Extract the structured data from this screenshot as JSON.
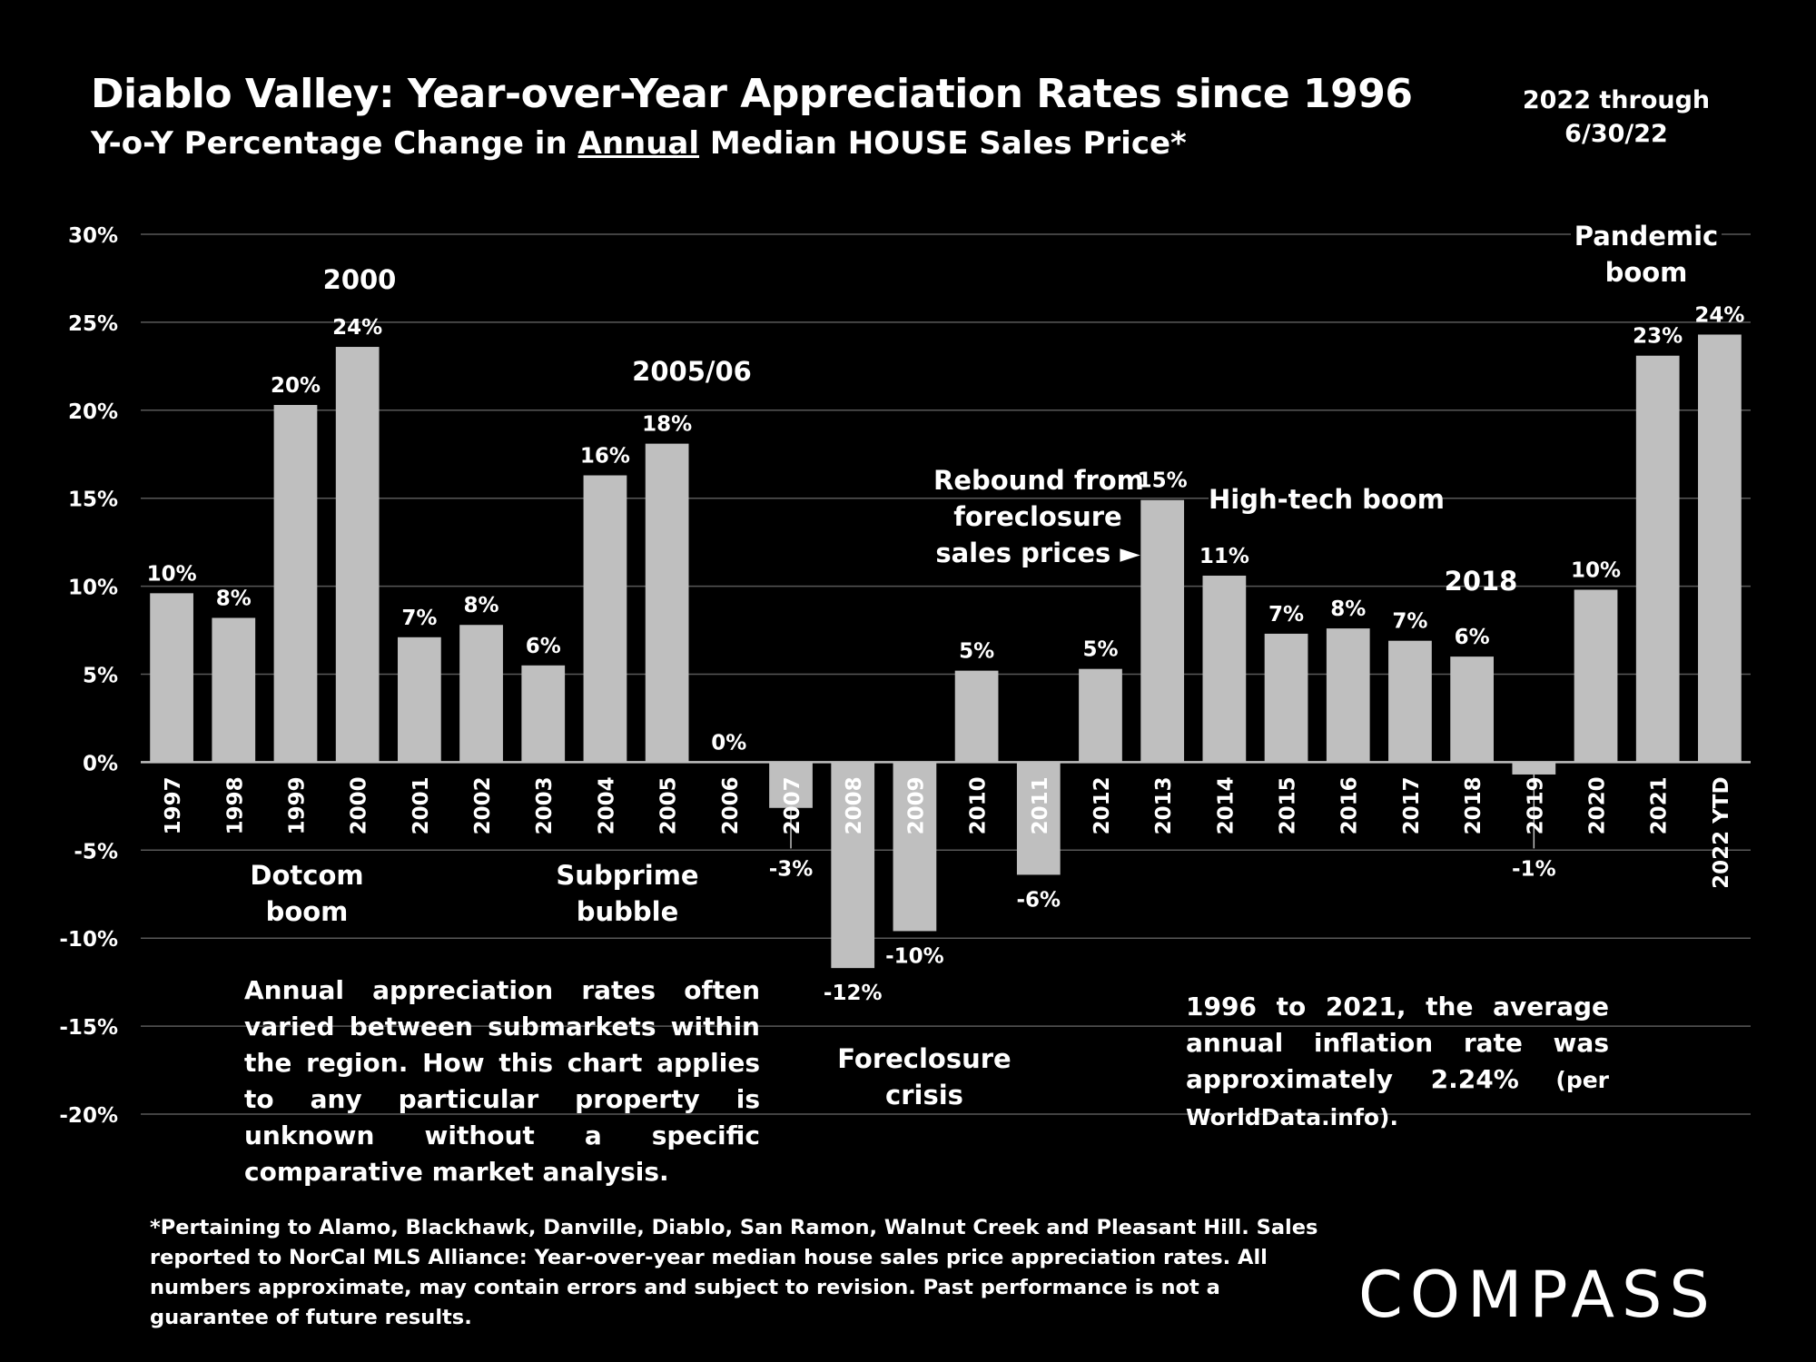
{
  "header": {
    "title": "Diablo Valley: Year-over-Year Appreciation Rates since 1996",
    "subtitle_before": "Y-o-Y Percentage Change in ",
    "subtitle_underlined": "Annual",
    "subtitle_after": " Median HOUSE Sales Price*",
    "period_line1": "2022 through",
    "period_line2": "6/30/22"
  },
  "chart_data": {
    "type": "bar",
    "categories": [
      "1997",
      "1998",
      "1999",
      "2000",
      "2001",
      "2002",
      "2003",
      "2004",
      "2005",
      "2006",
      "2007",
      "2008",
      "2009",
      "2010",
      "2011",
      "2012",
      "2013",
      "2014",
      "2015",
      "2016",
      "2017",
      "2018",
      "2019",
      "2020",
      "2021",
      "2022 YTD"
    ],
    "values": [
      9.6,
      8.2,
      20.3,
      23.6,
      7.1,
      7.8,
      5.5,
      16.3,
      18.1,
      0,
      -2.6,
      -11.7,
      -9.6,
      5.2,
      -6.4,
      5.3,
      14.9,
      10.6,
      7.3,
      7.6,
      6.9,
      6.0,
      -0.7,
      9.8,
      23.1,
      24.3
    ],
    "data_labels": [
      "10%",
      "8%",
      "20%",
      "24%",
      "7%",
      "8%",
      "6%",
      "16%",
      "18%",
      "0%",
      "-3%",
      "-12%",
      "-10%",
      "5%",
      "-6%",
      "5%",
      "15%",
      "11%",
      "7%",
      "8%",
      "7%",
      "6%",
      "-1%",
      "10%",
      "23%",
      "24%"
    ],
    "ylim": [
      -20,
      30
    ],
    "yticks": [
      "30%",
      "25%",
      "20%",
      "15%",
      "10%",
      "5%",
      "0%",
      "-5%",
      "-10%",
      "-15%",
      "-20%"
    ],
    "grid": true,
    "bar_color": "#bfbfbf",
    "grid_color": "#595959"
  },
  "annotations": {
    "dotcom": [
      "Dotcom",
      "boom"
    ],
    "subprime": [
      "Subprime",
      "bubble"
    ],
    "foreclosure": [
      "Foreclosure",
      "crisis"
    ],
    "y2000": "2000",
    "y2005": "2005/06",
    "rebound": [
      "Rebound from",
      "foreclosure",
      "sales prices ►"
    ],
    "hightech": "High-tech boom",
    "y2018": "2018",
    "pandemic": [
      "Pandemic",
      "boom"
    ]
  },
  "notes": {
    "left": "Annual appreciation rates often varied between submarkets within the region. How this chart applies to any particular property is unknown without a specific comparative market analysis.",
    "right_main": "1996 to 2021, the average annual inflation rate was approximately 2.24%",
    "right_small": " (per WorldData.info)."
  },
  "footnote": "*Pertaining to Alamo, Blackhawk, Danville, Diablo, San Ramon, Walnut Creek and Pleasant Hill. Sales reported to NorCal MLS Alliance: Year-over-year median house sales price appreciation rates. All numbers approximate, may contain errors and subject to revision. Past performance is not a guarantee of future results.",
  "brand": {
    "logo_text": "COMPASS"
  }
}
